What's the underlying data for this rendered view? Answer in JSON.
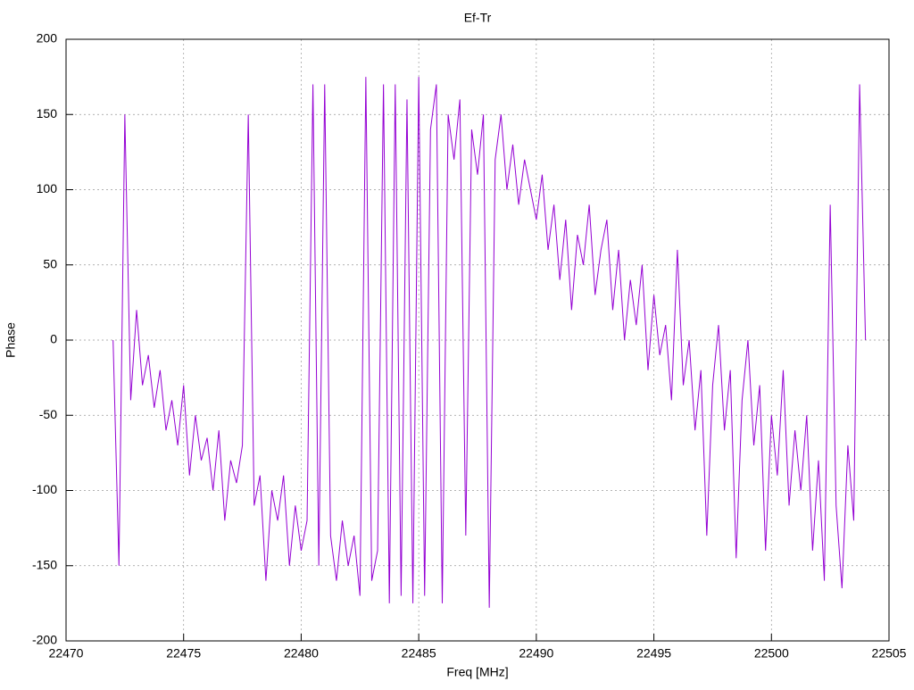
{
  "chart_data": {
    "type": "line",
    "title": "Ef-Tr",
    "xlabel": "Freq [MHz]",
    "ylabel": "Phase",
    "xlim": [
      22470,
      22505
    ],
    "xticks": [
      22470,
      22475,
      22480,
      22485,
      22490,
      22495,
      22500,
      22505
    ],
    "ylim": [
      -200,
      200
    ],
    "yticks": [
      -200,
      -150,
      -100,
      -50,
      0,
      50,
      100,
      150,
      200
    ],
    "grid": true,
    "x": [
      22472,
      22472.25,
      22472.5,
      22472.75,
      22473,
      22473.25,
      22473.5,
      22473.75,
      22474,
      22474.25,
      22474.5,
      22474.75,
      22475,
      22475.25,
      22475.5,
      22475.75,
      22476,
      22476.25,
      22476.5,
      22476.75,
      22477,
      22477.25,
      22477.5,
      22477.75,
      22478,
      22478.25,
      22478.5,
      22478.75,
      22479,
      22479.25,
      22479.5,
      22479.75,
      22480,
      22480.25,
      22480.5,
      22480.75,
      22481,
      22481.25,
      22481.5,
      22481.75,
      22482,
      22482.25,
      22482.5,
      22482.75,
      22483,
      22483.25,
      22483.5,
      22483.75,
      22484,
      22484.25,
      22484.5,
      22484.75,
      22485,
      22485.25,
      22485.5,
      22485.75,
      22486,
      22486.25,
      22486.5,
      22486.75,
      22487,
      22487.25,
      22487.5,
      22487.75,
      22488,
      22488.25,
      22488.5,
      22488.75,
      22489,
      22489.25,
      22489.5,
      22489.75,
      22490,
      22490.25,
      22490.5,
      22490.75,
      22491,
      22491.25,
      22491.5,
      22491.75,
      22492,
      22492.25,
      22492.5,
      22492.75,
      22493,
      22493.25,
      22493.5,
      22493.75,
      22494,
      22494.25,
      22494.5,
      22494.75,
      22495,
      22495.25,
      22495.5,
      22495.75,
      22496,
      22496.25,
      22496.5,
      22496.75,
      22497,
      22497.25,
      22497.5,
      22497.75,
      22498,
      22498.25,
      22498.5,
      22498.75,
      22499,
      22499.25,
      22499.5,
      22499.75,
      22500,
      22500.25,
      22500.5,
      22500.75,
      22501,
      22501.25,
      22501.5,
      22501.75,
      22502,
      22502.25,
      22502.5,
      22502.75,
      22503,
      22503.25,
      22503.5,
      22503.75,
      22504
    ],
    "series": [
      {
        "name": "Ef-Tr",
        "color": "#9400d3",
        "values": [
          0,
          -150,
          150,
          -40,
          20,
          -30,
          -10,
          -45,
          -20,
          -60,
          -40,
          -70,
          -30,
          -90,
          -50,
          -80,
          -65,
          -100,
          -60,
          -120,
          -80,
          -95,
          -70,
          150,
          -110,
          -90,
          -160,
          -100,
          -120,
          -90,
          -150,
          -110,
          -140,
          -120,
          170,
          -150,
          170,
          -130,
          -160,
          -120,
          -150,
          -130,
          -170,
          175,
          -160,
          -140,
          170,
          -175,
          170,
          -170,
          160,
          -175,
          175,
          -170,
          140,
          170,
          -175,
          150,
          120,
          160,
          -130,
          140,
          110,
          150,
          -178,
          120,
          150,
          100,
          130,
          90,
          120,
          100,
          80,
          110,
          60,
          90,
          40,
          80,
          20,
          70,
          50,
          90,
          30,
          60,
          80,
          20,
          60,
          0,
          40,
          10,
          50,
          -20,
          30,
          -10,
          10,
          -40,
          60,
          -30,
          0,
          -60,
          -20,
          -130,
          -30,
          10,
          -60,
          -20,
          -145,
          -40,
          0,
          -70,
          -30,
          -140,
          -50,
          -90,
          -20,
          -110,
          -60,
          -100,
          -50,
          -140,
          -80,
          -160,
          90,
          -110,
          -165,
          -70,
          -120,
          170,
          0
        ]
      }
    ]
  }
}
